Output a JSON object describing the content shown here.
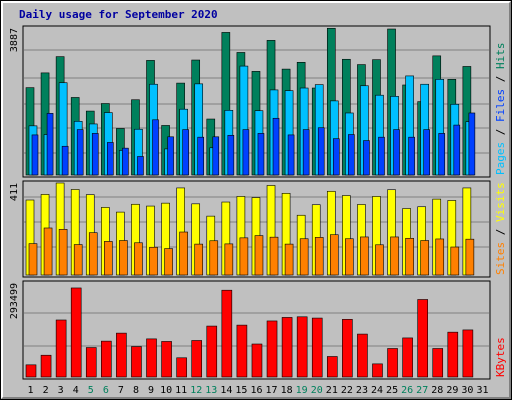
{
  "title": "Daily usage for September 2020",
  "colors": {
    "hits": "#00805c",
    "files": "#00c0ff",
    "pages": "#0040ff",
    "visits": "#ffff00",
    "sites": "#ff8000",
    "kbytes": "#ff0000",
    "weekend": "#00805c",
    "weekday": "#000000"
  },
  "chart_data": [
    {
      "type": "bar",
      "panel": "top",
      "max_label": "3887",
      "ylim": [
        0,
        3887
      ],
      "grid": true,
      "right_label": [
        {
          "text": "Pages",
          "color": "#00c0ff"
        },
        {
          "text": " / ",
          "color": "#000000"
        },
        {
          "text": "Files",
          "color": "#0040ff"
        },
        {
          "text": " / ",
          "color": "#000000"
        },
        {
          "text": "Hits",
          "color": "#00805c"
        }
      ],
      "categories": [
        "1",
        "2",
        "3",
        "4",
        "5",
        "6",
        "7",
        "8",
        "9",
        "10",
        "11",
        "12",
        "13",
        "14",
        "15",
        "16",
        "17",
        "18",
        "19",
        "20",
        "21",
        "22",
        "23",
        "24",
        "25",
        "26",
        "27",
        "28",
        "29",
        "30"
      ],
      "series": [
        {
          "name": "Hits",
          "values": [
            2310,
            2700,
            3130,
            2050,
            1690,
            1890,
            1230,
            1990,
            3030,
            1310,
            2430,
            3040,
            1480,
            3770,
            3240,
            2740,
            3560,
            2800,
            2980,
            2300,
            3880,
            3060,
            2920,
            3050,
            3860,
            2380,
            1940,
            3150,
            2530,
            2870
          ]
        },
        {
          "name": "Files",
          "values": [
            1300,
            1070,
            2440,
            1420,
            1350,
            1650,
            650,
            1210,
            2400,
            690,
            1740,
            2410,
            720,
            1710,
            2880,
            1700,
            2250,
            2230,
            2300,
            2390,
            1960,
            1640,
            2360,
            2110,
            2080,
            2620,
            2400,
            2530,
            1870,
            1410
          ]
        },
        {
          "name": "Pages",
          "values": [
            1060,
            1630,
            760,
            1200,
            1100,
            860,
            710,
            490,
            1460,
            1010,
            1200,
            1000,
            1010,
            1050,
            1200,
            1100,
            1500,
            1060,
            1200,
            1250,
            960,
            1070,
            910,
            1000,
            1200,
            1000,
            1200,
            1100,
            1320,
            1640
          ]
        }
      ]
    },
    {
      "type": "bar",
      "panel": "middle",
      "max_label": "411",
      "ylim": [
        0,
        411
      ],
      "grid": true,
      "right_label": [
        {
          "text": "Sites",
          "color": "#ff8000"
        },
        {
          "text": " / ",
          "color": "#000000"
        },
        {
          "text": "Visits",
          "color": "#ffff00"
        }
      ],
      "categories": [
        "1",
        "2",
        "3",
        "4",
        "5",
        "6",
        "7",
        "8",
        "9",
        "10",
        "11",
        "12",
        "13",
        "14",
        "15",
        "16",
        "17",
        "18",
        "19",
        "20",
        "21",
        "22",
        "23",
        "24",
        "25",
        "26",
        "27",
        "28",
        "29",
        "30"
      ],
      "series": [
        {
          "name": "Visits",
          "values": [
            335,
            360,
            411,
            382,
            359,
            302,
            281,
            316,
            308,
            321,
            389,
            318,
            263,
            326,
            351,
            346,
            400,
            365,
            267,
            314,
            374,
            355,
            315,
            351,
            381,
            297,
            305,
            339,
            333,
            389
          ]
        },
        {
          "name": "Sites",
          "values": [
            140,
            210,
            204,
            136,
            189,
            150,
            154,
            144,
            124,
            118,
            192,
            138,
            153,
            139,
            166,
            176,
            169,
            138,
            162,
            168,
            180,
            162,
            170,
            135,
            170,
            164,
            154,
            161,
            125,
            160
          ]
        }
      ]
    },
    {
      "type": "bar",
      "panel": "bottom",
      "max_label": "293499",
      "ylim": [
        0,
        293499
      ],
      "grid": true,
      "right_label": [
        {
          "text": "KBytes",
          "color": "#ff0000"
        }
      ],
      "categories": [
        "1",
        "2",
        "3",
        "4",
        "5",
        "6",
        "7",
        "8",
        "9",
        "10",
        "11",
        "12",
        "13",
        "14",
        "15",
        "16",
        "17",
        "18",
        "19",
        "20",
        "21",
        "22",
        "23",
        "24",
        "25",
        "26",
        "27",
        "28",
        "29",
        "30"
      ],
      "series": [
        {
          "name": "KBytes",
          "values": [
            38000,
            68000,
            178000,
            278000,
            92000,
            112000,
            137000,
            95000,
            119000,
            111000,
            60000,
            114000,
            159000,
            271000,
            162000,
            103000,
            175000,
            186000,
            188000,
            184000,
            64000,
            180000,
            134000,
            41000,
            89000,
            122000,
            242000,
            89000,
            140000,
            147000
          ]
        }
      ]
    }
  ],
  "x_axis": {
    "days": [
      "1",
      "2",
      "3",
      "4",
      "5",
      "6",
      "7",
      "8",
      "9",
      "10",
      "11",
      "12",
      "13",
      "14",
      "15",
      "16",
      "17",
      "18",
      "19",
      "20",
      "21",
      "22",
      "23",
      "24",
      "25",
      "26",
      "27",
      "28",
      "29",
      "30",
      "31"
    ],
    "weekend_days": [
      "5",
      "6",
      "12",
      "13",
      "19",
      "20",
      "26",
      "27"
    ]
  }
}
